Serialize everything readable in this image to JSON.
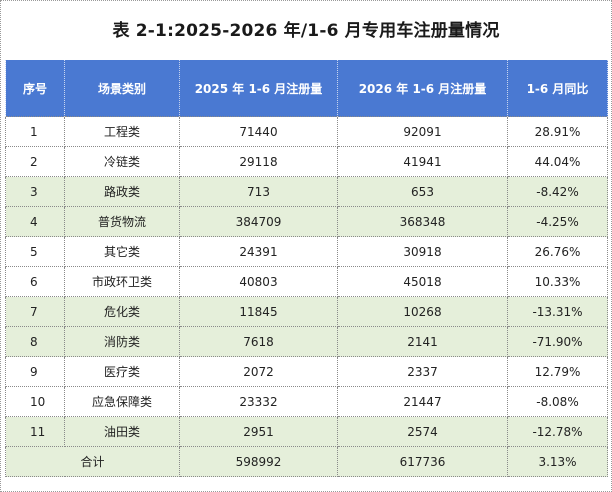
{
  "title": "表 2-1:2025-2026 年/1-6 月专用车注册量情况",
  "headers": [
    "序号",
    "场景类别",
    "2025 年 1-6 月注册量",
    "2026 年 1-6 月注册量",
    "1-6 月同比"
  ],
  "rows": [
    {
      "idx": "1",
      "category": "工程类",
      "y2025": "71440",
      "y2026": "92091",
      "yoy": "28.91%"
    },
    {
      "idx": "2",
      "category": "冷链类",
      "y2025": "29118",
      "y2026": "41941",
      "yoy": "44.04%"
    },
    {
      "idx": "3",
      "category": "路政类",
      "y2025": "713",
      "y2026": "653",
      "yoy": "-8.42%"
    },
    {
      "idx": "4",
      "category": "普货物流",
      "y2025": "384709",
      "y2026": "368348",
      "yoy": "-4.25%"
    },
    {
      "idx": "5",
      "category": "其它类",
      "y2025": "24391",
      "y2026": "30918",
      "yoy": "26.76%"
    },
    {
      "idx": "6",
      "category": "市政环卫类",
      "y2025": "40803",
      "y2026": "45018",
      "yoy": "10.33%"
    },
    {
      "idx": "7",
      "category": "危化类",
      "y2025": "11845",
      "y2026": "10268",
      "yoy": "-13.31%"
    },
    {
      "idx": "8",
      "category": "消防类",
      "y2025": "7618",
      "y2026": "2141",
      "yoy": "-71.90%"
    },
    {
      "idx": "9",
      "category": "医疗类",
      "y2025": "2072",
      "y2026": "2337",
      "yoy": "12.79%"
    },
    {
      "idx": "10",
      "category": "应急保障类",
      "y2025": "23332",
      "y2026": "21447",
      "yoy": "-8.08%"
    },
    {
      "idx": "11",
      "category": "油田类",
      "y2025": "2951",
      "y2026": "2574",
      "yoy": "-12.78%"
    }
  ],
  "total": {
    "label": "合计",
    "y2025": "598992",
    "y2026": "617736",
    "yoy": "3.13%"
  },
  "colors": {
    "header_bg": "#4a79d2",
    "band_green": "#e5efda",
    "band_white": "#ffffff"
  }
}
